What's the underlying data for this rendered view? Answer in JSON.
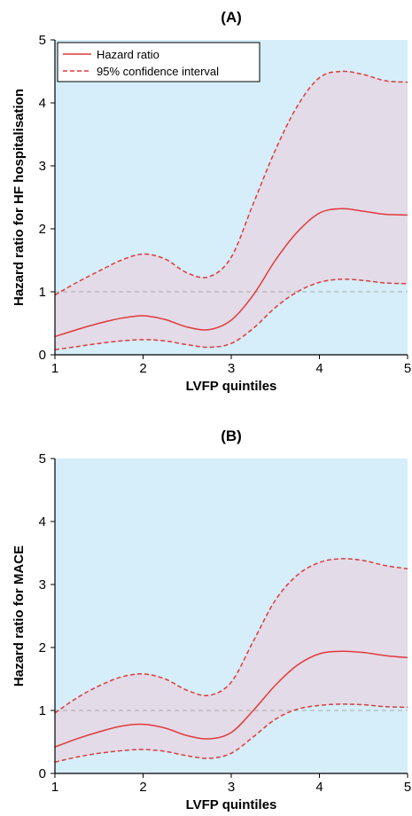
{
  "colors": {
    "plot_bg": "#d5eefa",
    "ci_band": "#e3dbe8",
    "hazard_line": "#e03a3a",
    "reference_line": "#a9a9a9",
    "axis": "#000000"
  },
  "legend": {
    "hazard_label": "Hazard ratio",
    "ci_label": "95% confidence interval",
    "placement": "top-left"
  },
  "chart_data": [
    {
      "type": "line",
      "title": "(A)",
      "xlabel": "LVFP quintiles",
      "ylabel": "Hazard ratio for HF hospitalisation",
      "xlim": [
        1,
        5
      ],
      "ylim": [
        0,
        5
      ],
      "xticks": [
        "1",
        "2",
        "3",
        "4",
        "5"
      ],
      "yticks": [
        "0",
        "1",
        "2",
        "3",
        "4",
        "5"
      ],
      "reference_y": 1,
      "grid": false,
      "legend": true,
      "x": [
        1,
        1.25,
        1.5,
        1.75,
        2,
        2.25,
        2.5,
        2.75,
        3,
        3.25,
        3.5,
        3.75,
        4,
        4.25,
        4.5,
        4.75,
        5
      ],
      "series": [
        {
          "name": "Hazard ratio",
          "style": "solid",
          "values": [
            0.29,
            0.4,
            0.5,
            0.58,
            0.62,
            0.56,
            0.44,
            0.4,
            0.55,
            0.95,
            1.5,
            1.95,
            2.25,
            2.32,
            2.28,
            2.23,
            2.22
          ]
        },
        {
          "name": "95% confidence interval",
          "style": "dashed",
          "role": "upper",
          "values": [
            0.95,
            1.15,
            1.33,
            1.5,
            1.6,
            1.52,
            1.3,
            1.24,
            1.55,
            2.4,
            3.25,
            3.95,
            4.4,
            4.5,
            4.45,
            4.35,
            4.33
          ]
        },
        {
          "name": "95% confidence interval",
          "style": "dashed",
          "role": "lower",
          "values": [
            0.08,
            0.13,
            0.18,
            0.22,
            0.24,
            0.22,
            0.16,
            0.12,
            0.18,
            0.42,
            0.75,
            1.0,
            1.15,
            1.2,
            1.18,
            1.14,
            1.13
          ]
        }
      ]
    },
    {
      "type": "line",
      "title": "(B)",
      "xlabel": "LVFP quintiles",
      "ylabel": "Hazard ratio for MACE",
      "xlim": [
        1,
        5
      ],
      "ylim": [
        0,
        5
      ],
      "xticks": [
        "1",
        "2",
        "3",
        "4",
        "5"
      ],
      "yticks": [
        "0",
        "1",
        "2",
        "3",
        "4",
        "5"
      ],
      "reference_y": 1,
      "grid": false,
      "legend": false,
      "x": [
        1,
        1.25,
        1.5,
        1.75,
        2,
        2.25,
        2.5,
        2.75,
        3,
        3.25,
        3.5,
        3.75,
        4,
        4.25,
        4.5,
        4.75,
        5
      ],
      "series": [
        {
          "name": "Hazard ratio",
          "style": "solid",
          "values": [
            0.42,
            0.55,
            0.66,
            0.75,
            0.78,
            0.72,
            0.6,
            0.55,
            0.65,
            1.0,
            1.4,
            1.72,
            1.9,
            1.94,
            1.92,
            1.87,
            1.84
          ]
        },
        {
          "name": "95% confidence interval",
          "style": "dashed",
          "role": "upper",
          "values": [
            0.96,
            1.2,
            1.39,
            1.53,
            1.58,
            1.5,
            1.32,
            1.24,
            1.45,
            2.1,
            2.75,
            3.15,
            3.35,
            3.41,
            3.38,
            3.3,
            3.25
          ]
        },
        {
          "name": "95% confidence interval",
          "style": "dashed",
          "role": "lower",
          "values": [
            0.18,
            0.26,
            0.32,
            0.36,
            0.38,
            0.35,
            0.28,
            0.24,
            0.32,
            0.58,
            0.86,
            1.02,
            1.08,
            1.1,
            1.09,
            1.06,
            1.05
          ]
        }
      ]
    }
  ]
}
